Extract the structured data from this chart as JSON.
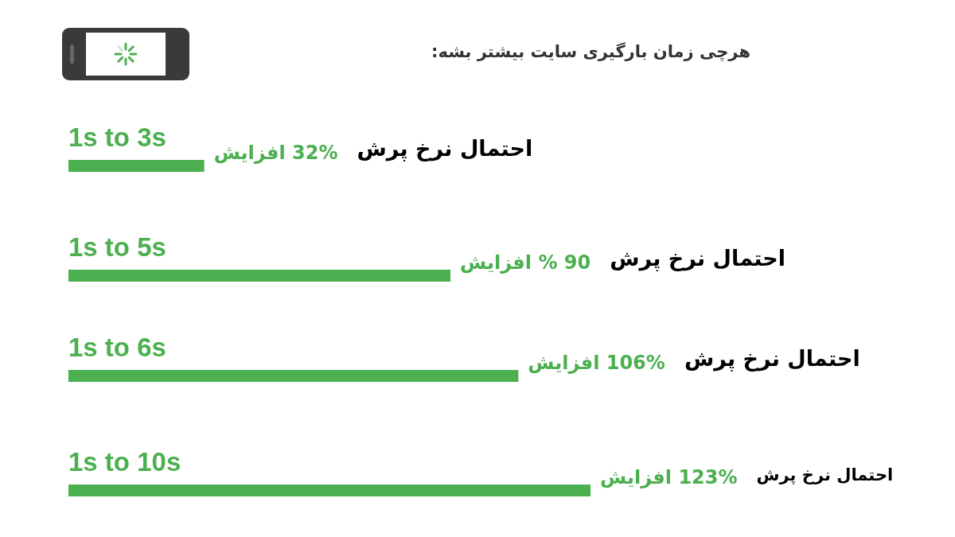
{
  "chart_data": {
    "type": "bar",
    "orientation": "horizontal",
    "title": "هرچی زمان بارگیری سایت بیشتر بشه:",
    "categories": [
      "1s to 3s",
      "1s to 5s",
      "1s to 6s",
      "1s to 10s"
    ],
    "values": [
      32,
      90,
      106,
      123
    ],
    "value_labels": [
      "32% افزایش",
      "90 % افزایش",
      "106% افزایش",
      "123% افزایش"
    ],
    "color": "#4caf50",
    "annotations": [
      "احتمال نرخ پرش",
      "احتمال نرخ پرش",
      "احتمال نرخ پرش",
      "احتمال نرخ پرش"
    ]
  }
}
